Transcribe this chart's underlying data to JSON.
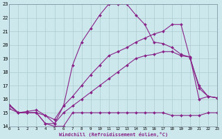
{
  "xlabel": "Windchill (Refroidissement éolien,°C)",
  "background_color": "#cce8ec",
  "grid_color": "#aacccc",
  "line_color": "#882288",
  "ylim": [
    14,
    23
  ],
  "xlim": [
    0,
    23
  ],
  "yticks": [
    14,
    15,
    16,
    17,
    18,
    19,
    20,
    21,
    22,
    23
  ],
  "xticks": [
    0,
    1,
    2,
    3,
    4,
    5,
    6,
    7,
    8,
    9,
    10,
    11,
    12,
    13,
    14,
    15,
    16,
    17,
    18,
    19,
    20,
    21,
    22,
    23
  ],
  "series": [
    {
      "x": [
        0,
        1,
        2,
        3,
        4,
        5,
        6,
        7,
        8,
        9,
        10,
        11,
        12,
        13,
        14,
        15,
        16,
        17,
        18,
        19,
        20,
        21,
        22,
        23
      ],
      "y": [
        15.6,
        15.0,
        15.1,
        15.2,
        14.8,
        14.2,
        15.5,
        18.5,
        20.2,
        21.2,
        22.2,
        23.0,
        23.0,
        23.0,
        22.2,
        21.5,
        20.2,
        20.1,
        19.8,
        19.3,
        19.1,
        16.0,
        16.2,
        16.1
      ],
      "linestyle": "-",
      "marker": "D",
      "markersize": 2.0,
      "linewidth": 0.8
    },
    {
      "x": [
        0,
        1,
        2,
        3,
        4,
        5,
        6,
        7,
        8,
        9,
        10,
        11,
        12,
        13,
        14,
        15,
        16,
        17,
        18,
        19,
        20,
        21,
        22,
        23
      ],
      "y": [
        15.6,
        15.0,
        15.0,
        15.0,
        14.2,
        14.0,
        14.0,
        15.0,
        15.0,
        15.0,
        15.0,
        15.0,
        15.0,
        15.0,
        15.0,
        15.0,
        15.0,
        15.0,
        14.8,
        14.8,
        14.8,
        14.8,
        15.0,
        15.0
      ],
      "linestyle": "-",
      "marker": "D",
      "markersize": 2.0,
      "linewidth": 0.8
    },
    {
      "x": [
        0,
        1,
        2,
        3,
        4,
        5,
        6,
        7,
        8,
        9,
        10,
        11,
        12,
        13,
        14,
        15,
        16,
        17,
        18,
        19,
        20,
        21,
        22,
        23
      ],
      "y": [
        15.3,
        15.0,
        15.0,
        15.0,
        14.2,
        14.2,
        15.0,
        15.5,
        16.0,
        16.5,
        17.0,
        17.5,
        18.0,
        18.5,
        19.0,
        19.2,
        19.3,
        19.5,
        19.5,
        19.2,
        19.1,
        16.8,
        16.2,
        16.1
      ],
      "linestyle": "-",
      "marker": "D",
      "markersize": 2.0,
      "linewidth": 0.8
    },
    {
      "x": [
        0,
        1,
        2,
        3,
        4,
        5,
        6,
        7,
        8,
        9,
        10,
        11,
        12,
        13,
        14,
        15,
        16,
        17,
        18,
        19,
        20,
        21,
        22,
        23
      ],
      "y": [
        15.5,
        15.0,
        15.0,
        15.0,
        14.8,
        14.5,
        15.5,
        16.2,
        17.0,
        17.8,
        18.5,
        19.2,
        19.5,
        19.8,
        20.2,
        20.5,
        20.8,
        21.0,
        21.5,
        21.5,
        19.0,
        17.0,
        16.2,
        16.1
      ],
      "linestyle": "-",
      "marker": "D",
      "markersize": 2.0,
      "linewidth": 0.8
    }
  ]
}
